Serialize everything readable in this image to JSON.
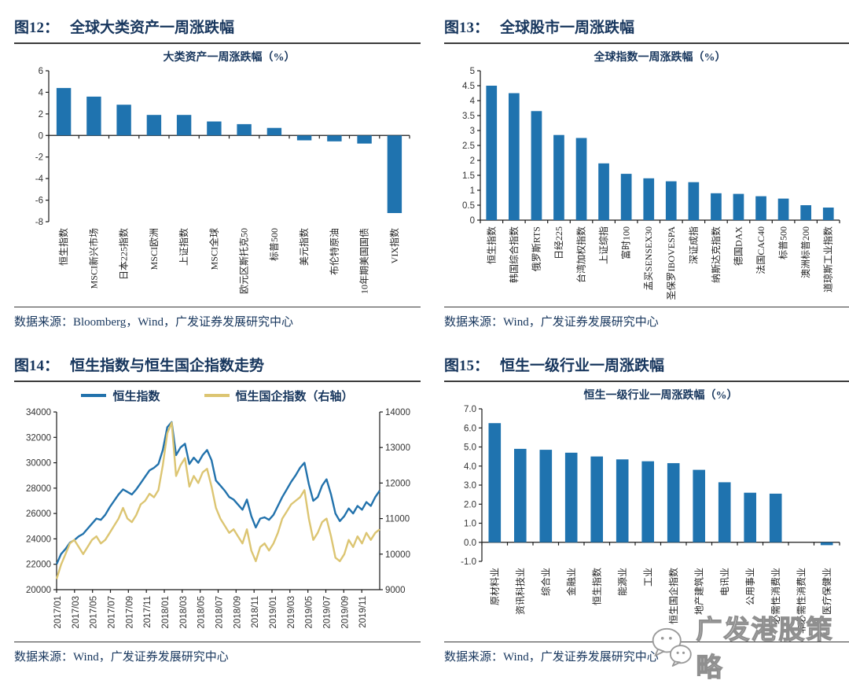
{
  "watermark": {
    "text": "广发港股策略",
    "icon": "wechat-bubbles",
    "color": "#8f8f8f"
  },
  "figures": [
    {
      "label": "图12：",
      "title": "全球大类资产一周涨跌幅",
      "source": "数据来源：Bloomberg，Wind，广发证券发展研究中心"
    },
    {
      "label": "图13：",
      "title": "全球股市一周涨跌幅",
      "source": "数据来源：Wind，广发证券发展研究中心"
    },
    {
      "label": "图14：",
      "title": "恒生指数与恒生国企指数走势",
      "source": "数据来源：Wind，广发证券发展研究中心"
    },
    {
      "label": "图15：",
      "title": "恒生一级行业一周涨跌幅",
      "source": "数据来源：Wind，广发证券发展研究中心"
    }
  ],
  "chart_data": [
    {
      "type": "bar",
      "title": "大类资产一周涨跌幅（%）",
      "categories": [
        "恒生指数",
        "MSCI新兴市场",
        "日本225指数",
        "MSCI欧洲",
        "上证指数",
        "MSCI全球",
        "欧元区斯托克50",
        "标普500",
        "美元指数",
        "布伦特原油",
        "10年期美国国债",
        "VIX指数"
      ],
      "values": [
        4.4,
        3.6,
        2.85,
        1.9,
        1.9,
        1.3,
        1.05,
        0.7,
        -0.45,
        -0.55,
        -0.75,
        -7.2
      ],
      "ylim": [
        -8,
        6
      ],
      "yticks": [
        6,
        4,
        2,
        0,
        -2,
        -4,
        -6,
        -8
      ],
      "ytick_labels": [
        "6",
        "4",
        "2",
        "0",
        "-2",
        "-4",
        "-6",
        "-8"
      ],
      "bar_color": "#1F73AF",
      "grid": false
    },
    {
      "type": "bar",
      "title": "全球指数一周涨跌幅（%）",
      "categories": [
        "恒生指数",
        "韩国综合指数",
        "俄罗斯RTS",
        "日经225",
        "台湾加权指数",
        "上证综指",
        "富时100",
        "孟买SENSEX30",
        "圣保罗IBOVESPA",
        "深证成指",
        "纳斯达克指数",
        "德国DAX",
        "法国CAC40",
        "标普500",
        "澳洲标普200",
        "道琼斯工业指数"
      ],
      "values": [
        4.5,
        4.25,
        3.65,
        2.85,
        2.75,
        1.9,
        1.55,
        1.4,
        1.3,
        1.27,
        0.9,
        0.88,
        0.8,
        0.72,
        0.5,
        0.42
      ],
      "ylim": [
        0,
        5
      ],
      "yticks": [
        5,
        4.5,
        4,
        3.5,
        3,
        2.5,
        2,
        1.5,
        1,
        0.5,
        0
      ],
      "ytick_labels": [
        "5",
        "4.5",
        "4",
        "3.5",
        "3",
        "2.5",
        "2",
        "1.5",
        "1",
        "0.5",
        "0"
      ],
      "bar_color": "#1F73AF",
      "grid": false
    },
    {
      "type": "line",
      "x_labels": [
        "2017/01",
        "2017/03",
        "2017/05",
        "2017/07",
        "2017/09",
        "2017/11",
        "2018/01",
        "2018/03",
        "2018/05",
        "2018/07",
        "2018/09",
        "2018/11",
        "2019/01",
        "2019/03",
        "2019/05",
        "2019/07",
        "2019/09",
        "2019/11"
      ],
      "months_span": 36,
      "left_axis": {
        "ylim": [
          20000,
          34000
        ],
        "ticks": [
          34000,
          32000,
          30000,
          28000,
          26000,
          24000,
          22000,
          20000
        ]
      },
      "right_axis": {
        "ylim": [
          9000,
          14000
        ],
        "ticks": [
          14000,
          13000,
          12000,
          11000,
          10000,
          9000
        ]
      },
      "legend_position": "top",
      "grid": false,
      "series": [
        {
          "name": "恒生指数",
          "axis": "left",
          "color": "#2272AC",
          "values": [
            22000,
            22800,
            23200,
            23700,
            23900,
            24200,
            24400,
            24800,
            25200,
            25600,
            25500,
            25900,
            26500,
            27000,
            27500,
            27900,
            27700,
            27500,
            27900,
            28400,
            28900,
            29400,
            29600,
            29900,
            31000,
            32800,
            33200,
            30600,
            31200,
            31500,
            29900,
            30400,
            30000,
            30600,
            31000,
            30200,
            28600,
            28200,
            27800,
            27300,
            27100,
            26700,
            26300,
            27100,
            25800,
            24900,
            25600,
            25700,
            25500,
            25900,
            26600,
            27300,
            27900,
            28500,
            29000,
            29600,
            30000,
            28300,
            27000,
            27300,
            28200,
            28700,
            27500,
            26000,
            25400,
            25800,
            26400,
            26000,
            26600,
            26300,
            26900,
            26600,
            27300,
            27800
          ]
        },
        {
          "name": "恒生国企指数（右轴）",
          "axis": "right",
          "color": "#DCC572",
          "values": [
            9300,
            9700,
            10000,
            10300,
            10400,
            10200,
            10000,
            10200,
            10400,
            10500,
            10300,
            10400,
            10600,
            10800,
            11000,
            11300,
            11000,
            10900,
            11100,
            11400,
            11500,
            11700,
            11600,
            11800,
            12500,
            13400,
            13700,
            12200,
            12500,
            12700,
            11900,
            12200,
            12000,
            12300,
            12400,
            11900,
            11300,
            11000,
            10800,
            10600,
            10700,
            10500,
            10300,
            10700,
            10100,
            9800,
            10200,
            10300,
            10100,
            10300,
            10600,
            11000,
            11200,
            11400,
            11500,
            11600,
            11800,
            11000,
            10400,
            10600,
            10900,
            11000,
            10500,
            9900,
            9800,
            10000,
            10400,
            10200,
            10500,
            10300,
            10600,
            10400,
            10600,
            10700
          ]
        }
      ]
    },
    {
      "type": "bar",
      "title": "恒生一级行业一周涨跌幅（%）",
      "categories": [
        "原材料业",
        "资讯科技业",
        "综合业",
        "金融业",
        "恒生指数",
        "能源业",
        "工业",
        "恒生国企指数",
        "地产建筑业",
        "电讯业",
        "公用事业",
        "必需性消费业",
        "非必需性消费业",
        "医疗保健业"
      ],
      "values": [
        6.25,
        4.9,
        4.85,
        4.7,
        4.5,
        4.35,
        4.25,
        4.15,
        3.8,
        3.15,
        2.6,
        2.55,
        0.0,
        -0.15
      ],
      "ylim": [
        -1,
        7
      ],
      "yticks": [
        7,
        6,
        5,
        4,
        3,
        2,
        1,
        0,
        -1
      ],
      "ytick_labels": [
        "7.0",
        "6.0",
        "5.0",
        "4.0",
        "3.0",
        "2.0",
        "1.0",
        "0.0",
        "-1.0"
      ],
      "bar_color": "#1F73AF",
      "grid": false
    }
  ]
}
